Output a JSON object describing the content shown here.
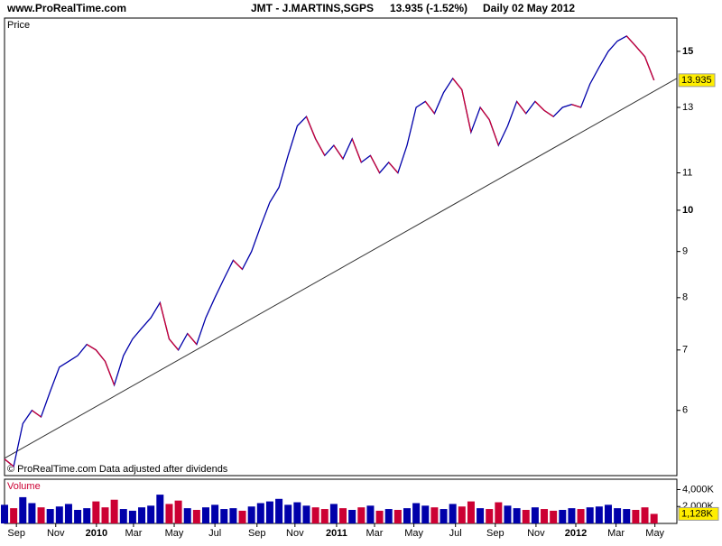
{
  "header": {
    "site": "www.ProRealTime.com",
    "title": "JMT - J.MARTINS,SGPS",
    "quote": "13.935 (-1.52%)",
    "period": "Daily  02 May 2012"
  },
  "chart_data": [
    {
      "type": "line",
      "title": "Price",
      "note": "© ProRealTime.com  Data adjusted after dividends",
      "log_scale": true,
      "up_color": "#0000aa",
      "down_color": "#cc0033",
      "x": [
        0,
        2,
        4,
        6,
        8,
        10,
        12,
        14,
        16,
        18,
        20,
        22,
        24,
        26,
        28,
        30,
        32,
        34,
        36,
        38,
        40,
        42,
        44,
        46,
        48,
        50,
        52,
        54,
        56,
        58,
        60,
        62,
        64,
        66,
        68,
        70,
        72,
        74,
        76,
        78,
        80,
        82,
        84,
        86,
        88,
        90,
        92,
        94,
        96,
        98,
        100,
        102,
        104,
        106,
        108,
        110,
        112,
        114,
        116,
        118,
        120,
        122,
        124,
        126,
        128,
        130,
        132,
        134,
        136,
        138,
        140,
        142
      ],
      "values": [
        5.3,
        5.2,
        5.8,
        6.0,
        5.9,
        6.3,
        6.7,
        6.8,
        6.9,
        7.1,
        7.0,
        6.8,
        6.4,
        6.9,
        7.2,
        7.4,
        7.6,
        7.9,
        7.2,
        7.0,
        7.3,
        7.1,
        7.6,
        8.0,
        8.4,
        8.8,
        8.6,
        9.0,
        9.6,
        10.2,
        10.6,
        11.5,
        12.4,
        12.7,
        12.0,
        11.5,
        11.8,
        11.4,
        12.0,
        11.3,
        11.5,
        11.0,
        11.3,
        11.0,
        11.8,
        13.0,
        13.2,
        12.8,
        13.5,
        14.0,
        13.6,
        12.2,
        13.0,
        12.6,
        11.8,
        12.4,
        13.2,
        12.8,
        13.2,
        12.9,
        12.7,
        13.0,
        13.1,
        13.0,
        13.8,
        14.4,
        15.0,
        15.4,
        15.6,
        15.2,
        14.8,
        13.935
      ],
      "trendline": {
        "x": [
          0,
          147
        ],
        "values": [
          5.31,
          14.0
        ],
        "color": "#333333"
      },
      "last_value": 13.935,
      "xlim": [
        0,
        147
      ],
      "ylim": [
        5.08,
        16.33
      ],
      "yticks": [
        6,
        7,
        8,
        9,
        10,
        11,
        13,
        15
      ],
      "xticks": [
        {
          "value": 2.6,
          "label": "Sep"
        },
        {
          "value": 11.2,
          "label": "Nov"
        },
        {
          "value": 20.1,
          "label": "2010"
        },
        {
          "value": 28.2,
          "label": "Mar"
        },
        {
          "value": 37.1,
          "label": "May"
        },
        {
          "value": 46,
          "label": "Jul"
        },
        {
          "value": 55.2,
          "label": "Sep"
        },
        {
          "value": 63.5,
          "label": "Nov"
        },
        {
          "value": 72.6,
          "label": "2011"
        },
        {
          "value": 80.9,
          "label": "Mar"
        },
        {
          "value": 89.5,
          "label": "May"
        },
        {
          "value": 98.6,
          "label": "Jul"
        },
        {
          "value": 107.3,
          "label": "Sep"
        },
        {
          "value": 116.2,
          "label": "Nov"
        },
        {
          "value": 124.9,
          "label": "2012"
        },
        {
          "value": 133.7,
          "label": "Mar"
        },
        {
          "value": 142.2,
          "label": "May"
        }
      ]
    },
    {
      "type": "bar",
      "title": "Volume",
      "x": [
        0,
        2,
        4,
        6,
        8,
        10,
        12,
        14,
        16,
        18,
        20,
        22,
        24,
        26,
        28,
        30,
        32,
        34,
        36,
        38,
        40,
        42,
        44,
        46,
        48,
        50,
        52,
        54,
        56,
        58,
        60,
        62,
        64,
        66,
        68,
        70,
        72,
        74,
        76,
        78,
        80,
        82,
        84,
        86,
        88,
        90,
        92,
        94,
        96,
        98,
        100,
        102,
        104,
        106,
        108,
        110,
        112,
        114,
        116,
        118,
        120,
        122,
        124,
        126,
        128,
        130,
        132,
        134,
        136,
        138,
        140,
        142
      ],
      "values": [
        2200,
        1800,
        3100,
        2400,
        1900,
        1700,
        2000,
        2300,
        1600,
        1800,
        2600,
        1900,
        2800,
        1700,
        1500,
        1900,
        2100,
        3400,
        2300,
        2700,
        1800,
        1600,
        1900,
        2200,
        1700,
        1800,
        1500,
        2000,
        2400,
        2600,
        2900,
        2200,
        2500,
        2100,
        1900,
        1700,
        2300,
        1800,
        1600,
        1900,
        2100,
        1500,
        1700,
        1600,
        1800,
        2400,
        2100,
        1900,
        1700,
        2300,
        2000,
        2600,
        1800,
        1700,
        2500,
        2100,
        1800,
        1600,
        1900,
        1700,
        1500,
        1600,
        1800,
        1700,
        1900,
        2000,
        2200,
        1800,
        1700,
        1600,
        1900,
        1128
      ],
      "xlim": [
        0,
        147
      ],
      "ylim": [
        0,
        5222
      ],
      "yticks": [
        {
          "value": 2000,
          "label": "2,000K"
        },
        {
          "value": 4000,
          "label": "4,000K"
        }
      ],
      "last_value": {
        "value": 1128,
        "label": "1,128K"
      }
    }
  ]
}
